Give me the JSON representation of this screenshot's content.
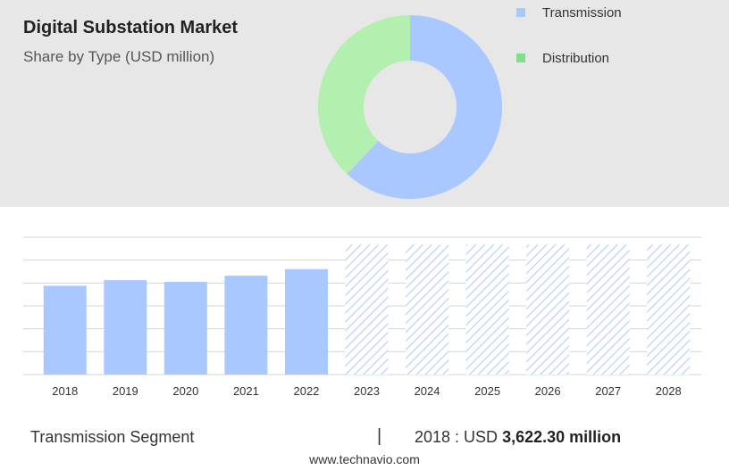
{
  "header": {
    "title": "Digital Substation Market",
    "subtitle": "Share by Type (USD million)"
  },
  "colors": {
    "transmission": "#a9c8ff",
    "distribution": "#b3f0b0",
    "legend_transmission": "#a9c8ff",
    "legend_distribution": "#7fe08a",
    "hatch": "#b4ccf7",
    "grid": "#d6d6d6",
    "panel": "#e7e7e7"
  },
  "legend": [
    {
      "label": "Transmission",
      "color_key": "legend_transmission"
    },
    {
      "label": "Distribution",
      "color_key": "legend_distribution"
    }
  ],
  "chart_data": [
    {
      "type": "pie",
      "variant": "donut",
      "slices": [
        {
          "name": "Transmission",
          "value": 62
        },
        {
          "name": "Distribution",
          "value": 38
        }
      ]
    },
    {
      "type": "bar",
      "categories": [
        "2018",
        "2019",
        "2020",
        "2021",
        "2022",
        "2023",
        "2024",
        "2025",
        "2026",
        "2027",
        "2028"
      ],
      "values": [
        3622.3,
        3850,
        3780,
        4030,
        4300,
        null,
        null,
        null,
        null,
        null,
        null
      ],
      "forecast_categories": [
        "2023",
        "2024",
        "2025",
        "2026",
        "2027",
        "2028"
      ],
      "ylim": [
        0,
        5600
      ],
      "grid": true
    }
  ],
  "footer": {
    "segment": "Transmission Segment",
    "separator": "|",
    "value_prefix": "2018 : USD",
    "value_bold": "3,622.30 million",
    "url": "www.technavio.com"
  }
}
